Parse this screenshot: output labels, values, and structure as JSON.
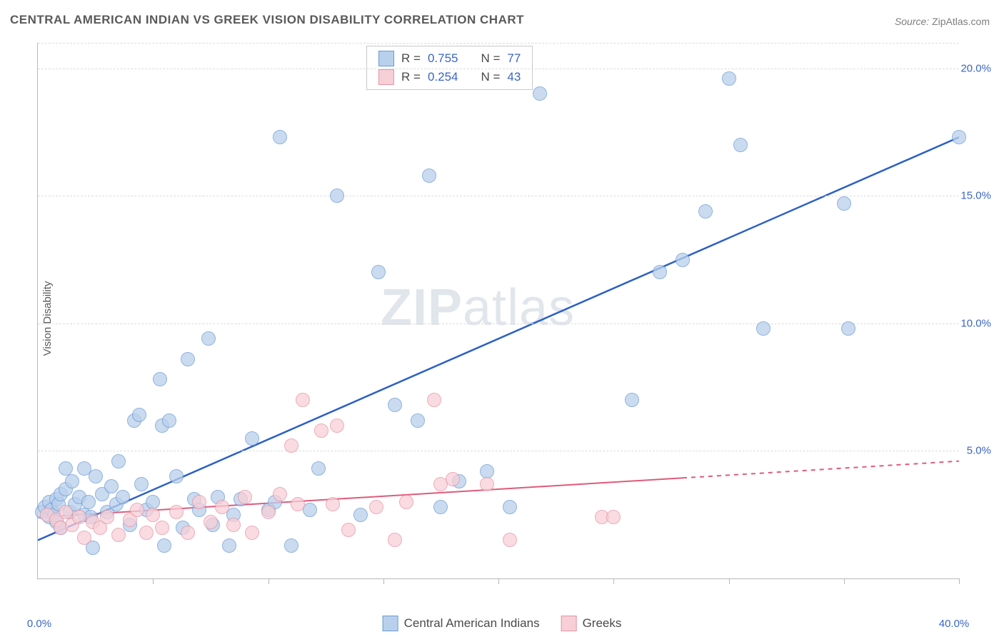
{
  "title": "CENTRAL AMERICAN INDIAN VS GREEK VISION DISABILITY CORRELATION CHART",
  "source_label": "Source:",
  "source_value": "ZipAtlas.com",
  "ylabel": "Vision Disability",
  "watermark_a": "ZIP",
  "watermark_b": "atlas",
  "chart": {
    "type": "scatter",
    "xlim": [
      0,
      40
    ],
    "ylim": [
      0,
      21
    ],
    "x_ticks_minor": [
      0,
      5,
      10,
      15,
      20,
      25,
      30,
      35,
      40
    ],
    "x_tick_labels": [
      {
        "v": 0,
        "t": "0.0%"
      },
      {
        "v": 40,
        "t": "40.0%"
      }
    ],
    "y_grid": [
      5,
      10,
      15,
      20
    ],
    "y_tick_labels": [
      {
        "v": 5,
        "t": "5.0%"
      },
      {
        "v": 10,
        "t": "10.0%"
      },
      {
        "v": 15,
        "t": "15.0%"
      },
      {
        "v": 20,
        "t": "20.0%"
      }
    ],
    "grid_color": "#dcdcdc",
    "axis_color": "#b8b8b8",
    "label_color": "#3a66c4",
    "background_color": "#ffffff",
    "marker_radius": 10,
    "marker_stroke_width": 1.5,
    "series": {
      "a": {
        "name": "Central American Indians",
        "fill": "#b9d0ec",
        "stroke": "#6a9ad4",
        "line_color": "#2b60c5",
        "line_width": 2.5,
        "r": 0.755,
        "n": 77,
        "trend": {
          "x1": 0,
          "y1": 1.5,
          "x2": 40,
          "y2": 17.3,
          "dash_from_x": null
        },
        "points": [
          [
            0.2,
            2.6
          ],
          [
            0.3,
            2.8
          ],
          [
            0.5,
            2.4
          ],
          [
            0.5,
            3.0
          ],
          [
            0.6,
            2.7
          ],
          [
            0.7,
            2.5
          ],
          [
            0.8,
            3.1
          ],
          [
            0.8,
            2.2
          ],
          [
            0.9,
            2.9
          ],
          [
            1.0,
            3.3
          ],
          [
            1.0,
            2.0
          ],
          [
            1.2,
            3.5
          ],
          [
            1.2,
            4.3
          ],
          [
            1.4,
            2.6
          ],
          [
            1.5,
            3.8
          ],
          [
            1.6,
            2.9
          ],
          [
            1.8,
            3.2
          ],
          [
            2.0,
            2.5
          ],
          [
            2.0,
            4.3
          ],
          [
            2.2,
            3.0
          ],
          [
            2.3,
            2.4
          ],
          [
            2.4,
            1.2
          ],
          [
            2.5,
            4.0
          ],
          [
            2.8,
            3.3
          ],
          [
            3.0,
            2.6
          ],
          [
            3.2,
            3.6
          ],
          [
            3.4,
            2.9
          ],
          [
            3.5,
            4.6
          ],
          [
            3.7,
            3.2
          ],
          [
            4.0,
            2.1
          ],
          [
            4.2,
            6.2
          ],
          [
            4.4,
            6.4
          ],
          [
            4.5,
            3.7
          ],
          [
            4.7,
            2.7
          ],
          [
            5.0,
            3.0
          ],
          [
            5.3,
            7.8
          ],
          [
            5.4,
            6.0
          ],
          [
            5.5,
            1.3
          ],
          [
            5.7,
            6.2
          ],
          [
            6.0,
            4.0
          ],
          [
            6.3,
            2.0
          ],
          [
            6.5,
            8.6
          ],
          [
            6.8,
            3.1
          ],
          [
            7.0,
            2.7
          ],
          [
            7.4,
            9.4
          ],
          [
            7.6,
            2.1
          ],
          [
            7.8,
            3.2
          ],
          [
            8.3,
            1.3
          ],
          [
            8.5,
            2.5
          ],
          [
            8.8,
            3.1
          ],
          [
            9.3,
            5.5
          ],
          [
            10.0,
            2.7
          ],
          [
            10.3,
            3.0
          ],
          [
            10.5,
            17.3
          ],
          [
            11.0,
            1.3
          ],
          [
            11.8,
            2.7
          ],
          [
            12.2,
            4.3
          ],
          [
            13.0,
            15.0
          ],
          [
            14.0,
            2.5
          ],
          [
            14.8,
            12.0
          ],
          [
            15.5,
            6.8
          ],
          [
            16.5,
            6.2
          ],
          [
            17.0,
            15.8
          ],
          [
            17.5,
            2.8
          ],
          [
            18.3,
            3.8
          ],
          [
            19.5,
            4.2
          ],
          [
            20.5,
            2.8
          ],
          [
            21.8,
            19.0
          ],
          [
            25.8,
            7.0
          ],
          [
            27.0,
            12.0
          ],
          [
            28.0,
            12.5
          ],
          [
            29.0,
            14.4
          ],
          [
            30.0,
            19.6
          ],
          [
            30.5,
            17.0
          ],
          [
            31.5,
            9.8
          ],
          [
            35.0,
            14.7
          ],
          [
            35.2,
            9.8
          ],
          [
            40.0,
            17.3
          ]
        ]
      },
      "b": {
        "name": "Greeks",
        "fill": "#f7cfd7",
        "stroke": "#e693a4",
        "line_color": "#e05a7a",
        "line_width": 2,
        "r": 0.254,
        "n": 43,
        "trend": {
          "x1": 0,
          "y1": 2.4,
          "x2": 40,
          "y2": 4.6,
          "dash_from_x": 28
        },
        "points": [
          [
            0.4,
            2.5
          ],
          [
            0.8,
            2.3
          ],
          [
            1.0,
            2.0
          ],
          [
            1.2,
            2.6
          ],
          [
            1.5,
            2.1
          ],
          [
            1.8,
            2.4
          ],
          [
            2.0,
            1.6
          ],
          [
            2.4,
            2.2
          ],
          [
            2.7,
            2.0
          ],
          [
            3.0,
            2.4
          ],
          [
            3.5,
            1.7
          ],
          [
            4.0,
            2.3
          ],
          [
            4.3,
            2.7
          ],
          [
            4.7,
            1.8
          ],
          [
            5.0,
            2.5
          ],
          [
            5.4,
            2.0
          ],
          [
            6.0,
            2.6
          ],
          [
            6.5,
            1.8
          ],
          [
            7.0,
            3.0
          ],
          [
            7.5,
            2.2
          ],
          [
            8.0,
            2.8
          ],
          [
            8.5,
            2.1
          ],
          [
            9.0,
            3.2
          ],
          [
            9.3,
            1.8
          ],
          [
            10.0,
            2.6
          ],
          [
            10.5,
            3.3
          ],
          [
            11.0,
            5.2
          ],
          [
            11.3,
            2.9
          ],
          [
            11.5,
            7.0
          ],
          [
            12.3,
            5.8
          ],
          [
            12.8,
            2.9
          ],
          [
            13.0,
            6.0
          ],
          [
            13.5,
            1.9
          ],
          [
            14.7,
            2.8
          ],
          [
            15.5,
            1.5
          ],
          [
            16.0,
            3.0
          ],
          [
            17.2,
            7.0
          ],
          [
            17.5,
            3.7
          ],
          [
            18.0,
            3.9
          ],
          [
            19.5,
            3.7
          ],
          [
            20.5,
            1.5
          ],
          [
            24.5,
            2.4
          ],
          [
            25.0,
            2.4
          ]
        ]
      }
    }
  },
  "legend_top": {
    "r_label": "R =",
    "n_label": "N ="
  },
  "legend_bottom": {}
}
